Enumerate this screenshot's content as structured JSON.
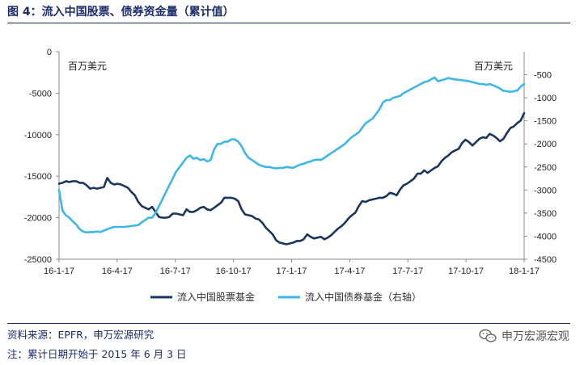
{
  "header": {
    "title": "图 4：流入中国股票、债券资金量（累计值）"
  },
  "footer": {
    "source": "资料来源：EPFR，申万宏源研究",
    "note": "注：累计日期开始于 2015 年 6 月 3 日",
    "brand": "申万宏源宏观",
    "brand_icon": "wechat-icon"
  },
  "chart_data": {
    "type": "line",
    "unit_left": "百万美元",
    "unit_right": "百万美元",
    "x_ticks": [
      "16-1-17",
      "16-4-17",
      "16-7-17",
      "16-10-17",
      "17-1-17",
      "17-4-17",
      "17-7-17",
      "17-10-17",
      "18-1-17"
    ],
    "y_left": {
      "lim": [
        -25000,
        0
      ],
      "ticks": [
        0,
        -5000,
        -10000,
        -15000,
        -20000,
        -25000
      ]
    },
    "y_right": {
      "lim": [
        -4500,
        0
      ],
      "ticks": [
        -500,
        -1000,
        -1500,
        -2000,
        -2500,
        -3000,
        -3500,
        -4000,
        -4500
      ]
    },
    "grid": false,
    "legend_position": "bottom",
    "series": [
      {
        "name": "流入中国股票基金",
        "axis": "left",
        "color": "#1b365d",
        "values": [
          -15900,
          -15800,
          -15600,
          -15700,
          -15600,
          -15600,
          -15800,
          -15800,
          -16100,
          -16500,
          -16400,
          -16500,
          -16400,
          -16300,
          -15200,
          -15800,
          -16000,
          -15900,
          -16000,
          -16200,
          -16400,
          -16900,
          -17300,
          -18100,
          -18600,
          -18800,
          -19000,
          -18700,
          -19300,
          -19900,
          -20000,
          -20000,
          -19900,
          -19500,
          -19500,
          -19600,
          -19700,
          -19000,
          -19300,
          -19300,
          -19100,
          -18800,
          -18700,
          -19000,
          -19100,
          -18800,
          -18500,
          -18200,
          -17600,
          -17600,
          -17600,
          -17700,
          -18000,
          -19000,
          -19600,
          -19700,
          -19800,
          -20100,
          -20200,
          -20600,
          -21200,
          -21600,
          -22000,
          -22700,
          -23000,
          -23100,
          -23200,
          -23100,
          -23000,
          -22800,
          -22800,
          -22600,
          -22000,
          -22300,
          -22500,
          -22400,
          -22300,
          -22600,
          -22400,
          -22100,
          -21700,
          -21300,
          -21000,
          -20600,
          -20100,
          -19700,
          -19400,
          -18600,
          -18000,
          -18100,
          -17900,
          -17800,
          -17700,
          -17600,
          -17600,
          -17400,
          -17000,
          -17100,
          -17300,
          -16600,
          -16100,
          -15900,
          -15600,
          -15300,
          -14700,
          -14700,
          -14300,
          -14600,
          -14300,
          -14000,
          -13800,
          -13200,
          -12800,
          -12500,
          -12100,
          -11900,
          -11700,
          -11000,
          -10600,
          -10900,
          -11300,
          -10900,
          -10500,
          -10300,
          -10400,
          -9900,
          -10100,
          -10400,
          -10800,
          -10500,
          -9800,
          -9200,
          -9000,
          -8600,
          -8300,
          -7400
        ]
      },
      {
        "name": "流入中国债券基金（右轴）",
        "axis": "right",
        "color": "#3fb6e8",
        "values": [
          -3000,
          -3450,
          -3550,
          -3600,
          -3680,
          -3750,
          -3850,
          -3900,
          -3920,
          -3910,
          -3910,
          -3900,
          -3910,
          -3880,
          -3850,
          -3820,
          -3800,
          -3800,
          -3800,
          -3800,
          -3790,
          -3780,
          -3770,
          -3760,
          -3700,
          -3650,
          -3600,
          -3600,
          -3500,
          -3350,
          -3200,
          -3050,
          -2900,
          -2750,
          -2600,
          -2500,
          -2400,
          -2300,
          -2250,
          -2320,
          -2300,
          -2350,
          -2330,
          -2380,
          -2350,
          -2120,
          -2000,
          -2000,
          -1950,
          -1950,
          -1900,
          -1900,
          -1950,
          -2050,
          -2200,
          -2300,
          -2350,
          -2400,
          -2450,
          -2480,
          -2500,
          -2500,
          -2520,
          -2530,
          -2520,
          -2520,
          -2500,
          -2510,
          -2520,
          -2480,
          -2450,
          -2430,
          -2400,
          -2380,
          -2350,
          -2340,
          -2350,
          -2300,
          -2250,
          -2200,
          -2150,
          -2100,
          -2050,
          -2000,
          -1920,
          -1850,
          -1800,
          -1750,
          -1650,
          -1550,
          -1500,
          -1450,
          -1350,
          -1250,
          -1100,
          -1050,
          -1050,
          -1000,
          -980,
          -960,
          -900,
          -860,
          -820,
          -780,
          -740,
          -700,
          -660,
          -640,
          -600,
          -560,
          -640,
          -620,
          -600,
          -570,
          -590,
          -600,
          -610,
          -620,
          -630,
          -640,
          -660,
          -680,
          -700,
          -700,
          -720,
          -700,
          -730,
          -760,
          -800,
          -850,
          -860,
          -870,
          -860,
          -840,
          -760,
          -700
        ]
      }
    ]
  }
}
